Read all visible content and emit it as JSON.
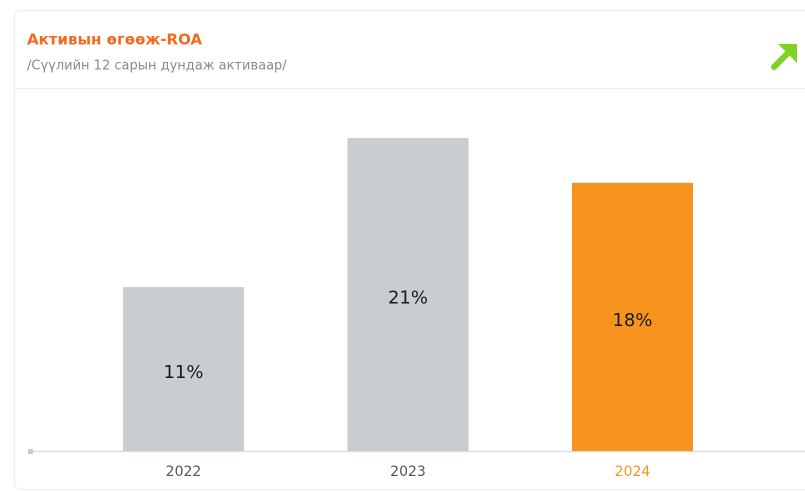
{
  "chart_data": {
    "type": "bar",
    "title": "Активын өгөөж-ROA",
    "subtitle": "/Сүүлийн 12 сарын дундаж активаар/",
    "categories": [
      "2022",
      "2023",
      "2024"
    ],
    "values": [
      11,
      21,
      18
    ],
    "value_labels": [
      "11%",
      "21%",
      "18%"
    ],
    "colors": [
      "#c9cdd0",
      "#c9cdd0",
      "#f7941d"
    ],
    "category_label_colors": [
      "#555555",
      "#555555",
      "#f7941d"
    ]
  }
}
